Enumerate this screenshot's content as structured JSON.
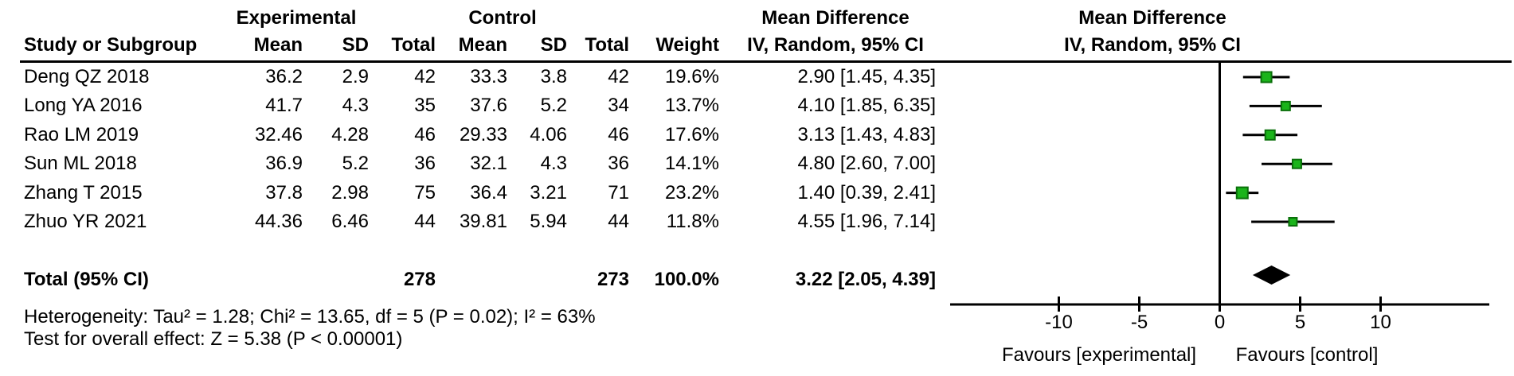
{
  "header": {
    "group_experimental": "Experimental",
    "group_control": "Control",
    "effect_title": "Mean Difference",
    "effect_subtitle": "IV, Random, 95% CI",
    "plot_title": "Mean Difference",
    "plot_subtitle": "IV, Random, 95% CI",
    "col_study": "Study or Subgroup",
    "col_mean": "Mean",
    "col_sd": "SD",
    "col_total": "Total",
    "col_mean2": "Mean",
    "col_sd2": "SD",
    "col_total2": "Total",
    "col_weight": "Weight"
  },
  "chart_data": {
    "type": "forest",
    "effect_measure": "Mean Difference",
    "model": "IV, Random, 95% CI",
    "studies": [
      {
        "name": "Deng QZ 2018",
        "exp_mean": "36.2",
        "exp_sd": "2.9",
        "exp_total": "42",
        "ctl_mean": "33.3",
        "ctl_sd": "3.8",
        "ctl_total": "42",
        "weight": "19.6%",
        "weight_pct": 19.6,
        "ci_text": "2.90 [1.45, 4.35]",
        "md": 2.9,
        "lo": 1.45,
        "hi": 4.35
      },
      {
        "name": "Long YA 2016",
        "exp_mean": "41.7",
        "exp_sd": "4.3",
        "exp_total": "35",
        "ctl_mean": "37.6",
        "ctl_sd": "5.2",
        "ctl_total": "34",
        "weight": "13.7%",
        "weight_pct": 13.7,
        "ci_text": "4.10 [1.85, 6.35]",
        "md": 4.1,
        "lo": 1.85,
        "hi": 6.35
      },
      {
        "name": "Rao LM 2019",
        "exp_mean": "32.46",
        "exp_sd": "4.28",
        "exp_total": "46",
        "ctl_mean": "29.33",
        "ctl_sd": "4.06",
        "ctl_total": "46",
        "weight": "17.6%",
        "weight_pct": 17.6,
        "ci_text": "3.13 [1.43, 4.83]",
        "md": 3.13,
        "lo": 1.43,
        "hi": 4.83
      },
      {
        "name": "Sun ML 2018",
        "exp_mean": "36.9",
        "exp_sd": "5.2",
        "exp_total": "36",
        "ctl_mean": "32.1",
        "ctl_sd": "4.3",
        "ctl_total": "36",
        "weight": "14.1%",
        "weight_pct": 14.1,
        "ci_text": "4.80 [2.60, 7.00]",
        "md": 4.8,
        "lo": 2.6,
        "hi": 7.0
      },
      {
        "name": "Zhang T 2015",
        "exp_mean": "37.8",
        "exp_sd": "2.98",
        "exp_total": "75",
        "ctl_mean": "36.4",
        "ctl_sd": "3.21",
        "ctl_total": "71",
        "weight": "23.2%",
        "weight_pct": 23.2,
        "ci_text": "1.40 [0.39, 2.41]",
        "md": 1.4,
        "lo": 0.39,
        "hi": 2.41
      },
      {
        "name": "Zhuo YR 2021",
        "exp_mean": "44.36",
        "exp_sd": "6.46",
        "exp_total": "44",
        "ctl_mean": "39.81",
        "ctl_sd": "5.94",
        "ctl_total": "44",
        "weight": "11.8%",
        "weight_pct": 11.8,
        "ci_text": "4.55 [1.96, 7.14]",
        "md": 4.55,
        "lo": 1.96,
        "hi": 7.14
      }
    ],
    "total": {
      "label": "Total (95% CI)",
      "exp_total": "278",
      "ctl_total": "273",
      "weight": "100.0%",
      "ci_text": "3.22 [2.05, 4.39]",
      "md": 3.22,
      "lo": 2.05,
      "hi": 4.39
    },
    "axis": {
      "tick_labels": [
        "-10",
        "-5",
        "0",
        "5",
        "10"
      ],
      "xmin": -16.7,
      "xmax": 16.7
    },
    "footnotes": {
      "heterogeneity": "Heterogeneity: Tau² = 1.28; Chi² = 13.65, df = 5 (P = 0.02); I² = 63%",
      "overall_effect": "Test for overall effect: Z = 5.38 (P < 0.00001)"
    },
    "favours_left": "Favours [experimental]",
    "favours_right": "Favours [control]",
    "colors": {
      "marker_fill": "#1ab41a",
      "marker_border": "#0a700a",
      "line": "#000000",
      "diamond": "#000000"
    }
  }
}
